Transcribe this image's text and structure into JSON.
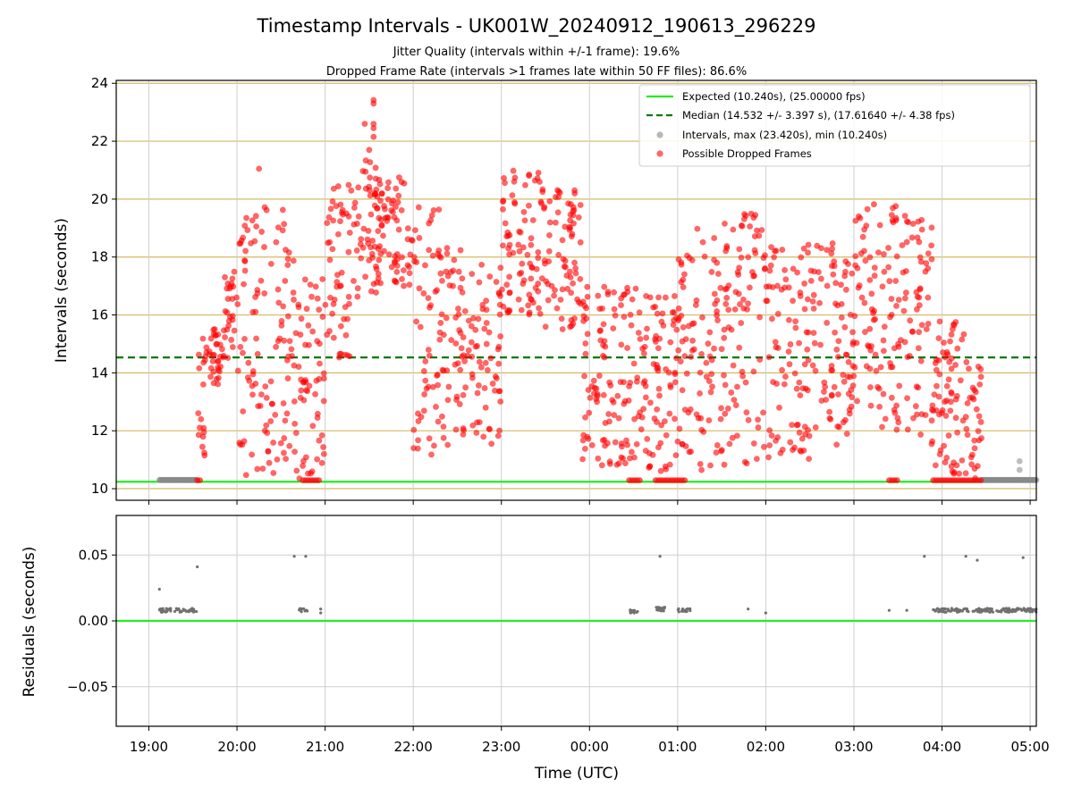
{
  "chart_data": [
    {
      "type": "scatter",
      "title": "Timestamp Intervals - UK001W_20240912_190613_296229",
      "subtitle_lines": [
        "Jitter Quality (intervals within +/-1 frame): 19.6%",
        "Dropped Frame Rate (intervals >1 frames late within 50 FF files): 86.6%"
      ],
      "xlabel": "",
      "ylabel": "Intervals (seconds)",
      "x_unit": "hours since 19:00 UTC",
      "xlim": [
        -0.37,
        10.07
      ],
      "ylim": [
        9.6,
        24.1
      ],
      "yticks": [
        10,
        12,
        14,
        16,
        18,
        20,
        22,
        24
      ],
      "ytick_labels": [
        "10",
        "12",
        "14",
        "16",
        "18",
        "20",
        "22",
        "24"
      ],
      "grid": true,
      "horizontal_gridlines_color": "#d4b862",
      "legend_position": "top-right",
      "legend": [
        "Expected (10.240s), (25.00000 fps)",
        "Median (14.532 +/- 3.397 s), (17.61640 +/- 4.38 fps)",
        "Intervals, max (23.420s), min (10.240s)",
        "Possible Dropped Frames"
      ],
      "reference_lines": [
        {
          "name": "Expected (10.240s), (25.00000 fps)",
          "y": 10.24,
          "color": "#22ee22",
          "style": "solid"
        },
        {
          "name": "Median (14.532 +/- 3.397 s), (17.61640 +/- 4.38 fps)",
          "y": 14.532,
          "color": "#007a00",
          "style": "dashed"
        }
      ],
      "series": [
        {
          "name": "Intervals, max (23.420s), min (10.240s)",
          "color": "#888888",
          "segments_at_expected": [
            [
              0.12,
              0.55
            ],
            [
              9.45,
              10.07
            ]
          ],
          "extra_points": [
            [
              9.88,
              10.95
            ],
            [
              9.88,
              10.65
            ]
          ]
        },
        {
          "name": "Possible Dropped Frames",
          "color": "#ff0000",
          "bands": [
            {
              "x": [
                0.55,
                0.65
              ],
              "y": [
                10.3,
                15.2
              ]
            },
            {
              "x": [
                0.65,
                0.85
              ],
              "y": [
                13.6,
                15.6
              ]
            },
            {
              "x": [
                0.85,
                1.0
              ],
              "y": [
                14.5,
                17.5
              ]
            },
            {
              "x": [
                1.0,
                1.3
              ],
              "y": [
                10.4,
                19.5
              ]
            },
            {
              "x": [
                1.3,
                1.65
              ],
              "y": [
                10.5,
                19.8
              ]
            },
            {
              "x": [
                1.65,
                2.0
              ],
              "y": [
                10.3,
                17.5
              ]
            },
            {
              "x": [
                2.0,
                2.3
              ],
              "y": [
                14.5,
                20.5
              ]
            },
            {
              "x": [
                2.3,
                2.6
              ],
              "y": [
                16.5,
                21.5
              ]
            },
            {
              "x": [
                2.6,
                3.0
              ],
              "y": [
                17.0,
                21.0
              ]
            },
            {
              "x": [
                3.0,
                3.3
              ],
              "y": [
                11.0,
                20.0
              ]
            },
            {
              "x": [
                3.3,
                3.7
              ],
              "y": [
                11.5,
                18.5
              ]
            },
            {
              "x": [
                3.7,
                4.0
              ],
              "y": [
                11.5,
                18.0
              ]
            },
            {
              "x": [
                4.0,
                4.5
              ],
              "y": [
                16.0,
                21.0
              ]
            },
            {
              "x": [
                4.5,
                4.9
              ],
              "y": [
                15.5,
                20.8
              ]
            },
            {
              "x": [
                4.9,
                5.1
              ],
              "y": [
                11.0,
                17.5
              ]
            },
            {
              "x": [
                5.1,
                5.5
              ],
              "y": [
                10.8,
                17.0
              ]
            },
            {
              "x": [
                5.5,
                6.0
              ],
              "y": [
                10.5,
                17.0
              ]
            },
            {
              "x": [
                6.0,
                6.5
              ],
              "y": [
                10.5,
                19.0
              ]
            },
            {
              "x": [
                6.5,
                7.0
              ],
              "y": [
                10.8,
                19.5
              ]
            },
            {
              "x": [
                7.0,
                7.5
              ],
              "y": [
                11.0,
                18.5
              ]
            },
            {
              "x": [
                7.5,
                8.0
              ],
              "y": [
                11.5,
                18.5
              ]
            },
            {
              "x": [
                8.0,
                8.5
              ],
              "y": [
                12.0,
                20.0
              ]
            },
            {
              "x": [
                8.5,
                8.9
              ],
              "y": [
                11.5,
                19.5
              ]
            },
            {
              "x": [
                8.9,
                9.3
              ],
              "y": [
                10.5,
                15.8
              ]
            },
            {
              "x": [
                9.3,
                9.45
              ],
              "y": [
                10.3,
                14.5
              ]
            }
          ],
          "peak_points": [
            [
              2.55,
              23.42
            ],
            [
              2.55,
              23.3
            ],
            [
              2.55,
              22.6
            ],
            [
              2.55,
              22.45
            ],
            [
              2.55,
              22.15
            ],
            [
              2.5,
              21.7
            ],
            [
              2.45,
              22.6
            ],
            [
              1.25,
              21.05
            ]
          ],
          "points_at_expected_x": [
            [
              0.55,
              0.6
            ],
            [
              1.75,
              1.95
            ],
            [
              5.45,
              5.6
            ],
            [
              5.75,
              6.1
            ],
            [
              8.4,
              8.5
            ],
            [
              8.9,
              9.45
            ]
          ]
        }
      ]
    },
    {
      "type": "scatter",
      "xlabel": "Time (UTC)",
      "ylabel": "Residuals (seconds)",
      "xlim": [
        -0.37,
        10.07
      ],
      "ylim": [
        -0.08,
        0.08
      ],
      "yticks": [
        -0.05,
        0.0,
        0.05
      ],
      "ytick_labels": [
        "−0.05",
        "0.00",
        "0.05"
      ],
      "xticks": [
        0,
        1,
        2,
        3,
        4,
        5,
        6,
        7,
        8,
        9,
        10
      ],
      "xtick_labels": [
        "19:00",
        "20:00",
        "21:00",
        "22:00",
        "23:00",
        "00:00",
        "01:00",
        "02:00",
        "03:00",
        "04:00",
        "05:00"
      ],
      "grid": true,
      "zero_line_color": "#22ee22",
      "series": [
        {
          "name": "Residuals",
          "color": "#707070",
          "clusters": [
            {
              "x": [
                0.12,
                0.55
              ],
              "y": 0.008
            },
            {
              "x": [
                1.7,
                1.8
              ],
              "y": 0.008
            },
            {
              "x": [
                5.45,
                5.55
              ],
              "y": 0.007
            },
            {
              "x": [
                5.75,
                5.9
              ],
              "y": 0.009
            },
            {
              "x": [
                6.0,
                6.15
              ],
              "y": 0.008
            },
            {
              "x": [
                8.9,
                9.3
              ],
              "y": 0.008
            },
            {
              "x": [
                9.35,
                10.07
              ],
              "y": 0.008
            }
          ],
          "isolated_points": [
            [
              0.12,
              0.024
            ],
            [
              0.55,
              0.041
            ],
            [
              1.65,
              0.049
            ],
            [
              1.78,
              0.049
            ],
            [
              1.95,
              0.009
            ],
            [
              1.95,
              0.006
            ],
            [
              5.8,
              0.049
            ],
            [
              6.8,
              0.009
            ],
            [
              7.0,
              0.006
            ],
            [
              8.8,
              0.049
            ],
            [
              9.27,
              0.049
            ],
            [
              9.4,
              0.046
            ],
            [
              9.92,
              0.048
            ],
            [
              8.4,
              0.008
            ],
            [
              8.6,
              0.008
            ]
          ]
        }
      ]
    }
  ]
}
